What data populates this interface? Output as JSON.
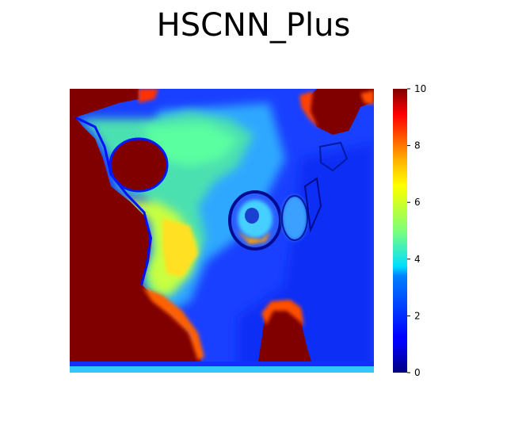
{
  "chart_data": {
    "type": "heatmap",
    "title": "HSCNN_Plus",
    "colormap": "jet",
    "clim": [
      0,
      10
    ],
    "colorbar": {
      "ticks": [
        0,
        2,
        4,
        6,
        8,
        10
      ],
      "tick_labels": [
        "0",
        "2",
        "4",
        "6",
        "8",
        "10"
      ]
    },
    "axes_visible": false,
    "grid": false
  }
}
